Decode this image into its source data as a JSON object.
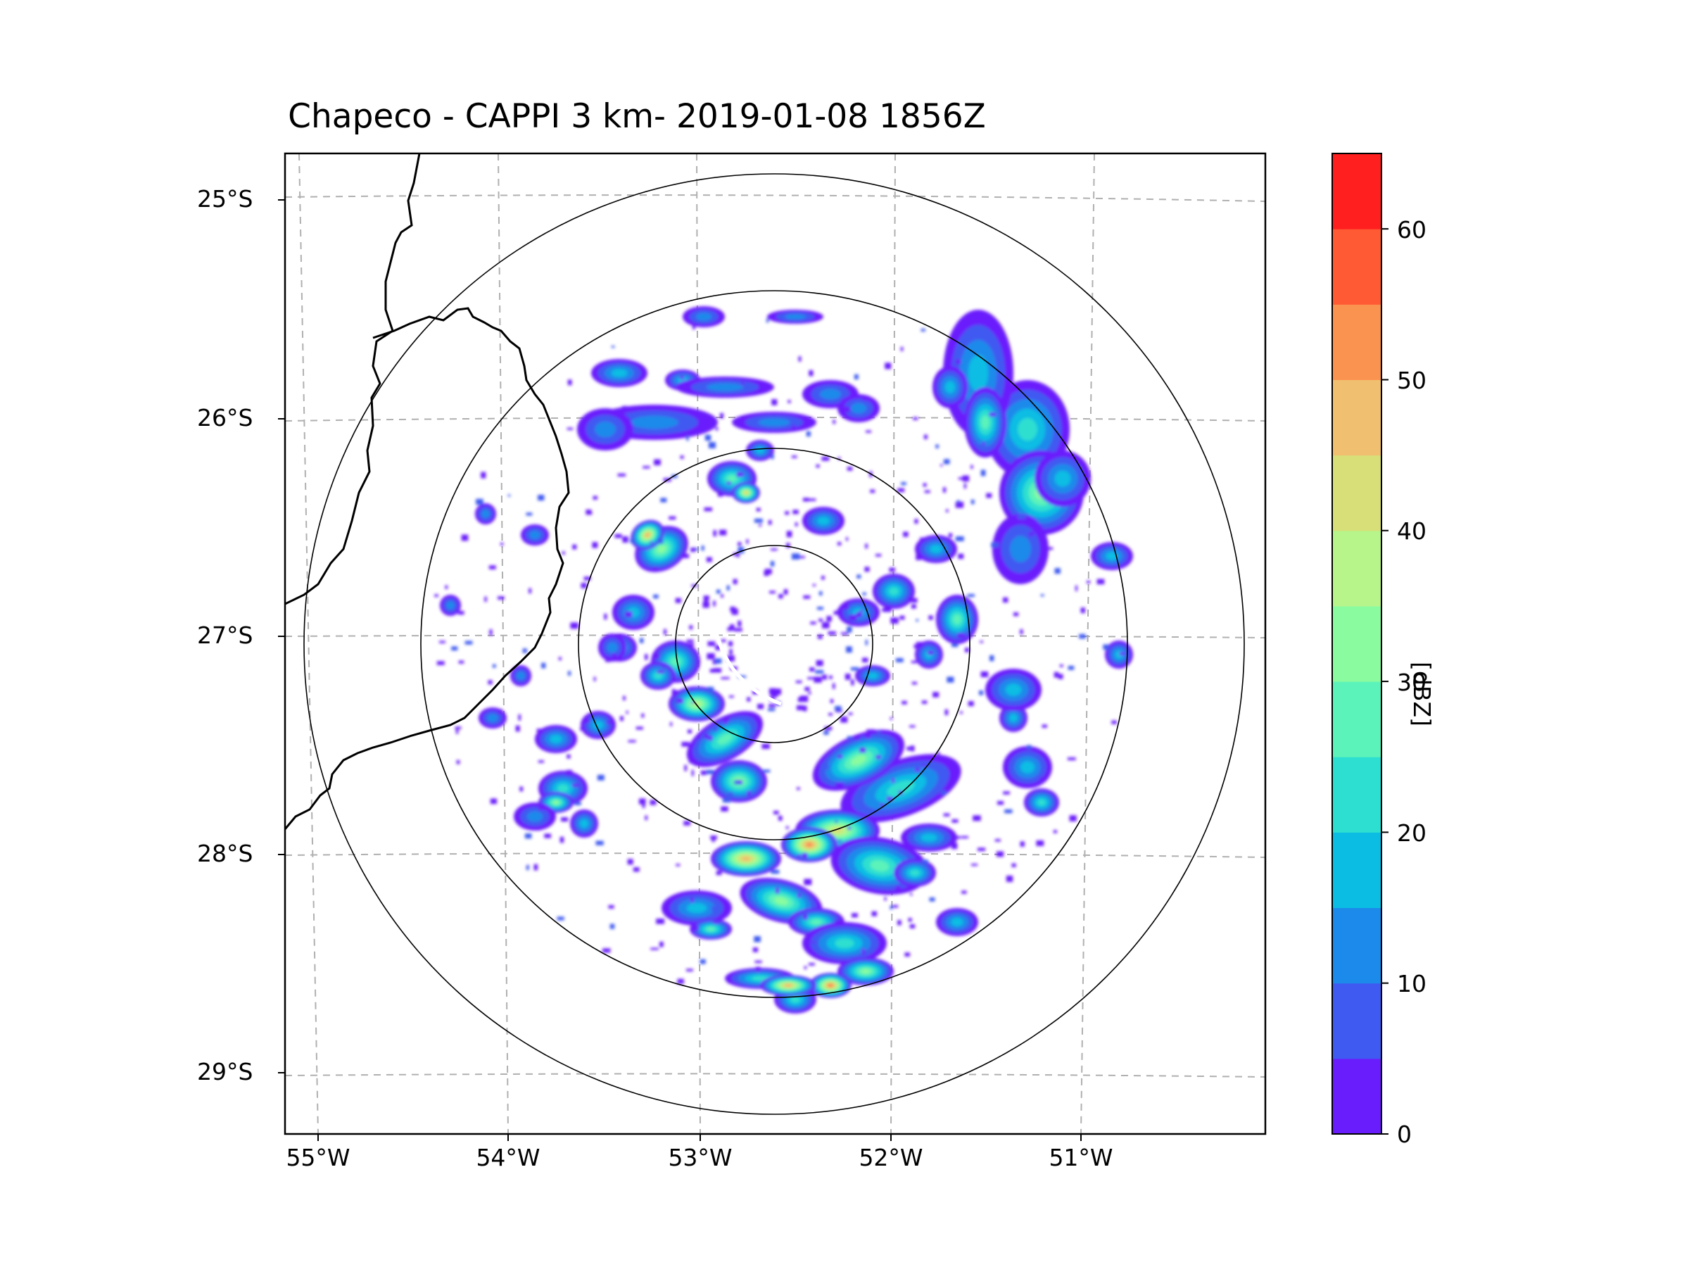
{
  "title": "Chapeco - CAPPI 3 km- 2019-01-08 1856Z",
  "map": {
    "latitude_labels": [
      "25°S",
      "26°S",
      "27°S",
      "28°S",
      "29°S"
    ],
    "longitude_labels": [
      "55°W",
      "54°W",
      "53°W",
      "52°W",
      "51°W"
    ],
    "range_rings_count": 4,
    "radar_site": "Chapeco"
  },
  "colorbar": {
    "unit": "[dBZ]",
    "tick_labels": [
      "0",
      "10",
      "20",
      "30",
      "40",
      "50",
      "60"
    ],
    "min": 0,
    "max": 65,
    "step": 5,
    "colors": [
      "#6a1dfc",
      "#3f5af1",
      "#1b8aea",
      "#0bbde3",
      "#2ddfd0",
      "#5cf3ba",
      "#8afc9f",
      "#b7f58a",
      "#d8df78",
      "#f0c070",
      "#fa9250",
      "#ff5a33",
      "#ff1f1f"
    ]
  }
}
